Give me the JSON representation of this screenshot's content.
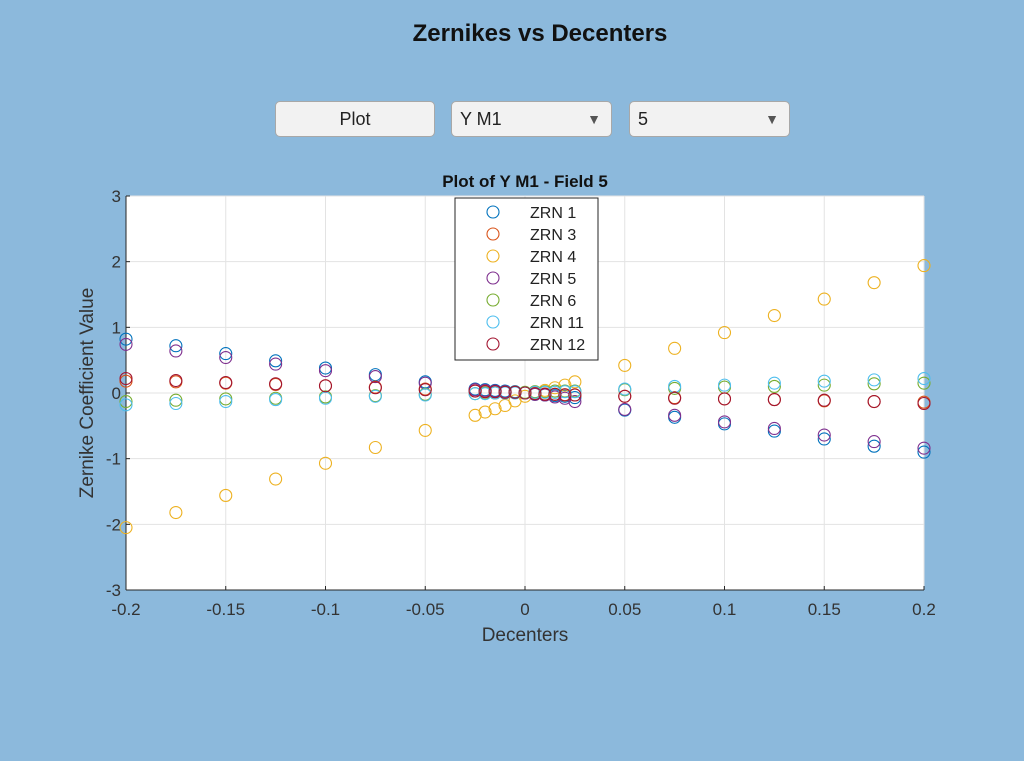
{
  "app": {
    "title": "Zernikes vs Decenters"
  },
  "controls": {
    "plot_label": "Plot",
    "variable_selected": "Y M1",
    "field_selected": "5"
  },
  "chart_data": {
    "type": "scatter",
    "title": "Plot of Y M1 - Field 5",
    "xlabel": "Decenters",
    "ylabel": "Zernike Coefficient Value",
    "xlim": [
      -0.2,
      0.2
    ],
    "ylim": [
      -3,
      3
    ],
    "xticks": [
      "-0.2",
      "-0.15",
      "-0.1",
      "-0.05",
      "0",
      "0.05",
      "0.1",
      "0.15",
      "0.2"
    ],
    "yticks": [
      "3",
      "2",
      "1",
      "0",
      "-1",
      "-2",
      "-3"
    ],
    "grid": true,
    "legend_position": "top-center",
    "marker": "open-circle",
    "x": [
      -0.2,
      -0.175,
      -0.15,
      -0.125,
      -0.1,
      -0.075,
      -0.05,
      -0.025,
      -0.02,
      -0.015,
      -0.01,
      -0.005,
      0,
      0.005,
      0.01,
      0.015,
      0.02,
      0.025,
      0.05,
      0.075,
      0.1,
      0.125,
      0.15,
      0.175,
      0.2
    ],
    "series": [
      {
        "name": "ZRN 1",
        "color": "#0072bd",
        "values": [
          0.82,
          0.72,
          0.6,
          0.49,
          0.38,
          0.28,
          0.17,
          0.06,
          0.05,
          0.04,
          0.03,
          0.02,
          0.0,
          -0.02,
          -0.03,
          -0.04,
          -0.05,
          -0.07,
          -0.26,
          -0.37,
          -0.47,
          -0.58,
          -0.7,
          -0.81,
          -0.9
        ]
      },
      {
        "name": "ZRN 3",
        "color": "#d95319",
        "values": [
          0.18,
          0.17,
          0.15,
          0.13,
          0.11,
          0.09,
          0.06,
          0.03,
          0.025,
          0.02,
          0.015,
          0.01,
          0.0,
          -0.01,
          -0.015,
          -0.02,
          -0.025,
          -0.03,
          -0.05,
          -0.07,
          -0.09,
          -0.1,
          -0.12,
          -0.13,
          -0.14
        ]
      },
      {
        "name": "ZRN 4",
        "color": "#edb120",
        "values": [
          -2.05,
          -1.82,
          -1.56,
          -1.31,
          -1.07,
          -0.83,
          -0.57,
          -0.34,
          -0.29,
          -0.24,
          -0.19,
          -0.12,
          -0.05,
          0.0,
          0.04,
          0.08,
          0.12,
          0.17,
          0.42,
          0.68,
          0.92,
          1.18,
          1.43,
          1.68,
          1.94
        ]
      },
      {
        "name": "ZRN 5",
        "color": "#7e2f8e",
        "values": [
          0.74,
          0.64,
          0.54,
          0.44,
          0.34,
          0.25,
          0.15,
          0.05,
          0.04,
          0.03,
          0.02,
          0.01,
          0.0,
          -0.02,
          -0.03,
          -0.06,
          -0.08,
          -0.13,
          -0.25,
          -0.34,
          -0.44,
          -0.54,
          -0.64,
          -0.74,
          -0.84
        ]
      },
      {
        "name": "ZRN 6",
        "color": "#77ac30",
        "values": [
          -0.13,
          -0.11,
          -0.09,
          -0.08,
          -0.06,
          -0.04,
          -0.02,
          -0.01,
          0.0,
          0.0,
          0.01,
          0.01,
          0.01,
          0.02,
          0.02,
          0.03,
          0.03,
          0.03,
          0.05,
          0.07,
          0.09,
          0.1,
          0.12,
          0.14,
          0.15
        ]
      },
      {
        "name": "ZRN 11",
        "color": "#4dbeee",
        "values": [
          -0.18,
          -0.16,
          -0.13,
          -0.1,
          -0.08,
          -0.05,
          -0.03,
          -0.01,
          -0.01,
          0.0,
          0.0,
          0.0,
          0.0,
          0.01,
          0.01,
          0.01,
          0.02,
          0.02,
          0.06,
          0.1,
          0.12,
          0.15,
          0.18,
          0.2,
          0.22
        ]
      },
      {
        "name": "ZRN 12",
        "color": "#a2142f",
        "values": [
          0.22,
          0.19,
          0.16,
          0.14,
          0.11,
          0.08,
          0.05,
          0.03,
          0.02,
          0.02,
          0.01,
          0.01,
          0.0,
          -0.01,
          -0.02,
          -0.02,
          -0.03,
          -0.03,
          -0.05,
          -0.08,
          -0.09,
          -0.1,
          -0.11,
          -0.13,
          -0.16
        ]
      }
    ]
  }
}
